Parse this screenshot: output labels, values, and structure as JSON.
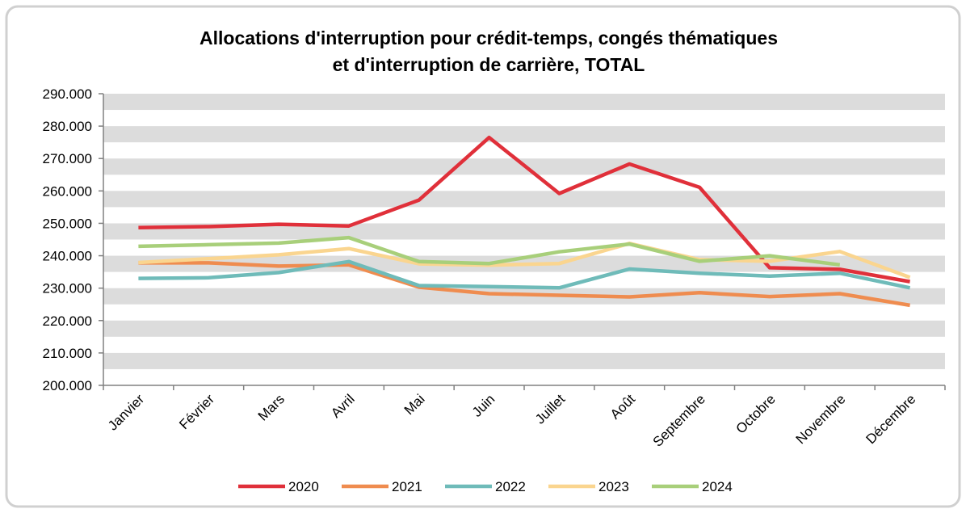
{
  "chart_data": {
    "type": "line",
    "title": [
      "Allocations d'interruption pour crédit-temps, congés thématiques",
      "et d'interruption de carrière, TOTAL"
    ],
    "categories": [
      "Janvier",
      "Février",
      "Mars",
      "Avril",
      "Mai",
      "Juin",
      "Juillet",
      "Août",
      "Septembre",
      "Octobre",
      "Novembre",
      "Décembre"
    ],
    "series": [
      {
        "name": "2020",
        "color": "#e0303a",
        "values": [
          248700,
          249000,
          249700,
          249200,
          257200,
          276500,
          259200,
          268300,
          261100,
          236300,
          235800,
          232000
        ]
      },
      {
        "name": "2021",
        "color": "#ef8c4f",
        "values": [
          237800,
          237800,
          236800,
          237200,
          230300,
          228300,
          227800,
          227300,
          228600,
          227400,
          228300,
          224700
        ]
      },
      {
        "name": "2022",
        "color": "#6fbbb9",
        "values": [
          233000,
          233200,
          234800,
          238200,
          230800,
          230500,
          230100,
          235900,
          234600,
          233700,
          234600,
          230100
        ]
      },
      {
        "name": "2023",
        "color": "#fad58f",
        "values": [
          237900,
          239100,
          240300,
          242200,
          237500,
          237100,
          237600,
          243800,
          238800,
          238300,
          241300,
          233300
        ]
      },
      {
        "name": "2024",
        "color": "#a8cf7a",
        "values": [
          242900,
          243400,
          243900,
          245600,
          238200,
          237600,
          241200,
          243600,
          238300,
          240000,
          237200,
          null
        ]
      }
    ],
    "ylim": [
      200000,
      290000
    ],
    "yticks": [
      {
        "value": 200000,
        "label": "200.000"
      },
      {
        "value": 210000,
        "label": "210.000"
      },
      {
        "value": 220000,
        "label": "220.000"
      },
      {
        "value": 230000,
        "label": "230.000"
      },
      {
        "value": 240000,
        "label": "240.000"
      },
      {
        "value": 250000,
        "label": "250.000"
      },
      {
        "value": 260000,
        "label": "260.000"
      },
      {
        "value": 270000,
        "label": "270.000"
      },
      {
        "value": 280000,
        "label": "280.000"
      },
      {
        "value": 290000,
        "label": "290.000"
      }
    ],
    "grid": true,
    "legend": "bottom"
  }
}
